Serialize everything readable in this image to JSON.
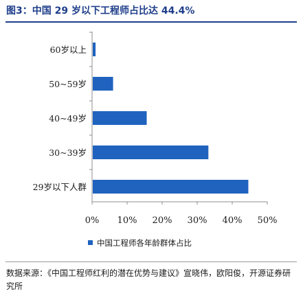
{
  "header": {
    "title": "图3：中国 29 岁以下工程师占比达 44.4%"
  },
  "legend": {
    "label": "中国工程师各年龄群体占比"
  },
  "source": {
    "text": "数据来源：《中国工程师红利的潜在优势与建议》宣晓伟，欧阳俊，开源证券研究所"
  },
  "colors": {
    "bar": "#1f63bf",
    "title": "#1f3e8a",
    "axis": "#8c8c8c"
  },
  "chart_data": {
    "type": "bar",
    "orientation": "horizontal",
    "title": "",
    "xlabel": "",
    "ylabel": "",
    "categories": [
      "60岁以上",
      "50~59岁",
      "40~49岁",
      "30~39岁",
      "29岁以下人群"
    ],
    "series": [
      {
        "name": "中国工程师各年龄群体占比",
        "values": [
          0.8,
          5.8,
          15.4,
          33.0,
          44.4
        ]
      }
    ],
    "xlim": [
      0,
      50
    ],
    "xticks": [
      0,
      10,
      20,
      30,
      40,
      50
    ],
    "xtick_labels": [
      "0%",
      "10%",
      "20%",
      "30%",
      "40%",
      "50%"
    ],
    "grid": false,
    "legend_position": "bottom"
  }
}
